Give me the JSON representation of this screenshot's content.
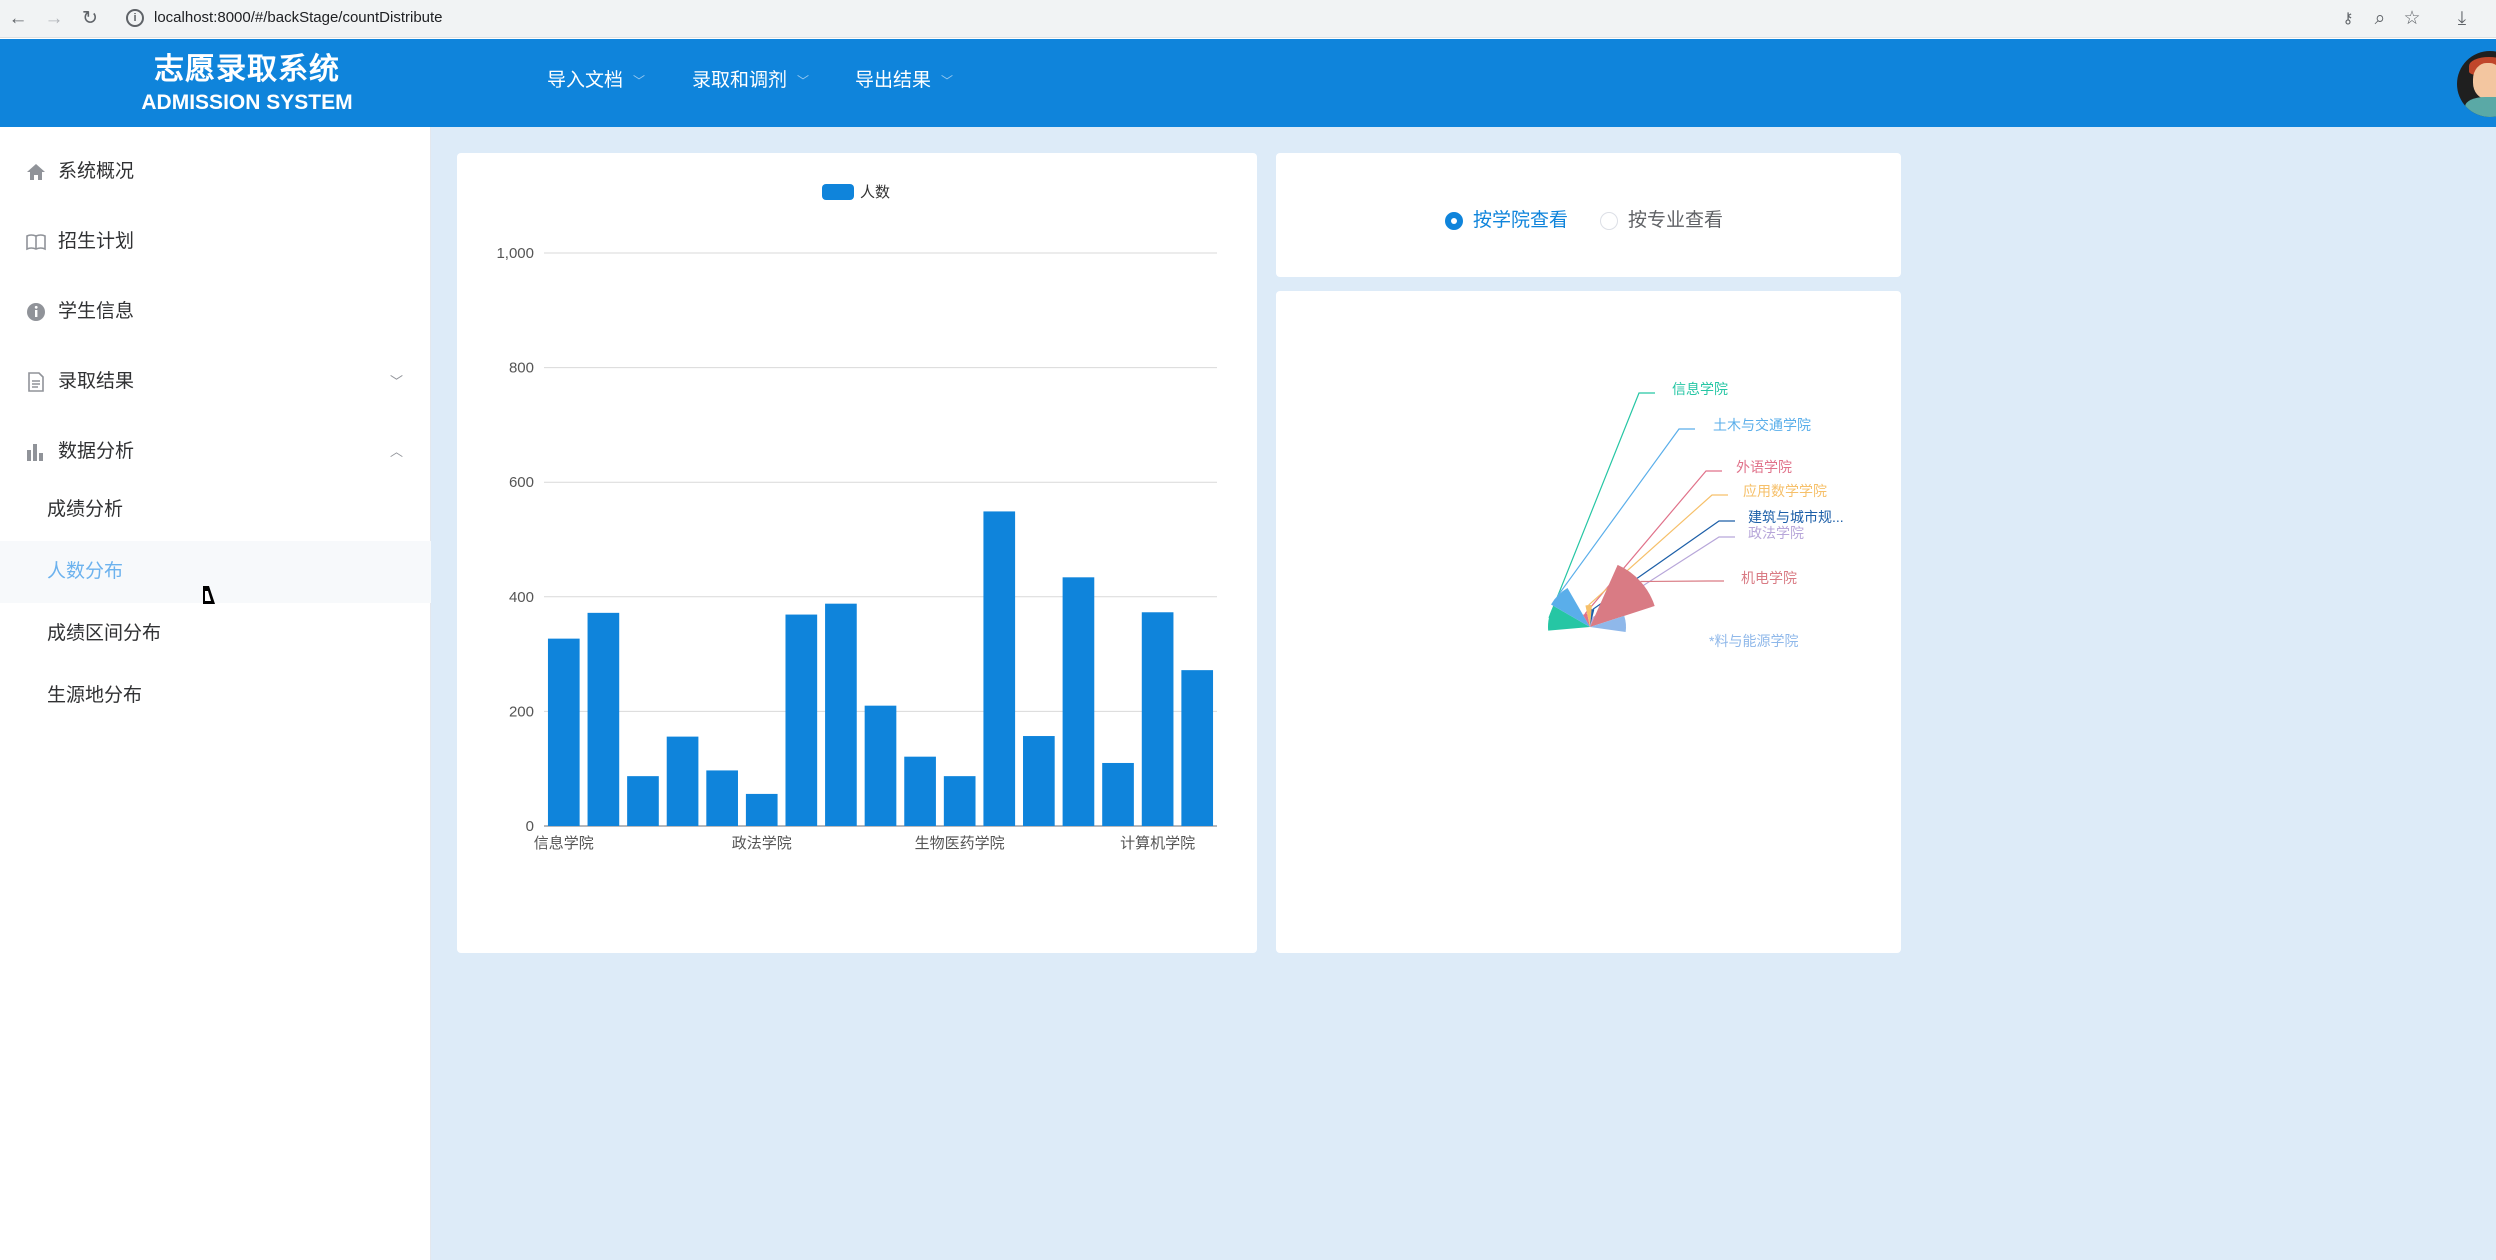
{
  "browser": {
    "url": "localhost:8000/#/backStage/countDistribute"
  },
  "header": {
    "logo_cn": "志愿录取系统",
    "logo_en": "ADMISSION SYSTEM",
    "menus": [
      "导入文档",
      "录取和调剂",
      "导出结果"
    ]
  },
  "sidebar": {
    "items": [
      {
        "label": "系统概况",
        "icon": "home-icon"
      },
      {
        "label": "招生计划",
        "icon": "book-icon"
      },
      {
        "label": "学生信息",
        "icon": "info-icon"
      },
      {
        "label": "录取结果",
        "icon": "document-icon"
      },
      {
        "label": "数据分析",
        "icon": "bar-chart-icon"
      }
    ],
    "subitems": [
      "成绩分析",
      "人数分布",
      "成绩区间分布",
      "生源地分布"
    ],
    "active_subitem": "人数分布"
  },
  "radio": {
    "options": [
      "按学院查看",
      "按专业查看"
    ],
    "selected": "按学院查看"
  },
  "colors": {
    "header": "#0f84db",
    "bar": "#0f84db",
    "background": "#ddebf8"
  },
  "chart_data": [
    {
      "type": "bar",
      "legend": [
        "人数"
      ],
      "legend_position": "top-center",
      "x_tick_labels": [
        "信息学院",
        "政法学院",
        "生物医药学院",
        "计算机学院"
      ],
      "y_ticks": [
        "0",
        "200",
        "400",
        "600",
        "800",
        "1,000"
      ],
      "ylim": [
        0,
        1000
      ],
      "grid": true,
      "series": [
        {
          "name": "人数",
          "values": [
            327,
            372,
            87,
            156,
            97,
            56,
            369,
            388,
            210,
            121,
            87,
            549,
            157,
            434,
            110,
            373,
            272
          ]
        }
      ]
    },
    {
      "type": "pie",
      "rose": true,
      "labels": [
        "信息学院",
        "土木与交通学院",
        "外语学院",
        "应用数学学院",
        "建筑与城市规...",
        "政法学院",
        "机电学院",
        "*料与能源学院"
      ],
      "slice_colors": [
        "#26c6a4",
        "#5aaeea",
        "#e0728a",
        "#f6c06a",
        "#1d5fa8",
        "#b7a6d9",
        "#d97b84",
        "#8fb8ea"
      ]
    }
  ]
}
